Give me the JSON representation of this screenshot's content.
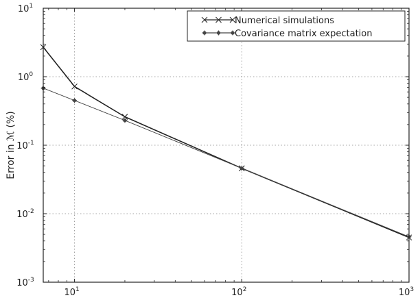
{
  "chart_data": {
    "type": "line",
    "xscale": "log",
    "yscale": "log",
    "xlim": [
      6.5,
      1000
    ],
    "ylim": [
      0.001,
      10
    ],
    "ylabel": "Error in ℳ (%)",
    "xlabel": "",
    "grid": true,
    "legend_position": "top-right",
    "x_ticks": [
      {
        "base": "10",
        "exp": "1"
      },
      {
        "base": "10",
        "exp": "2"
      },
      {
        "base": "10",
        "exp": "3"
      }
    ],
    "y_ticks": [
      {
        "base": "10",
        "exp": "1"
      },
      {
        "base": "10",
        "exp": "0"
      },
      {
        "base": "10",
        "exp": "-1"
      },
      {
        "base": "10",
        "exp": "-2"
      },
      {
        "base": "10",
        "exp": "-3"
      }
    ],
    "series": [
      {
        "name": "Numerical simulations",
        "marker": "x",
        "color": "#222222",
        "x": [
          6.5,
          10,
          20,
          100,
          1000
        ],
        "y": [
          2.7,
          0.72,
          0.26,
          0.046,
          0.0045
        ]
      },
      {
        "name": "Covariance matrix expectation",
        "marker": "*",
        "color": "#444444",
        "x": [
          6.5,
          10,
          20,
          100,
          1000
        ],
        "y": [
          0.68,
          0.45,
          0.23,
          0.046,
          0.0046
        ]
      }
    ]
  }
}
